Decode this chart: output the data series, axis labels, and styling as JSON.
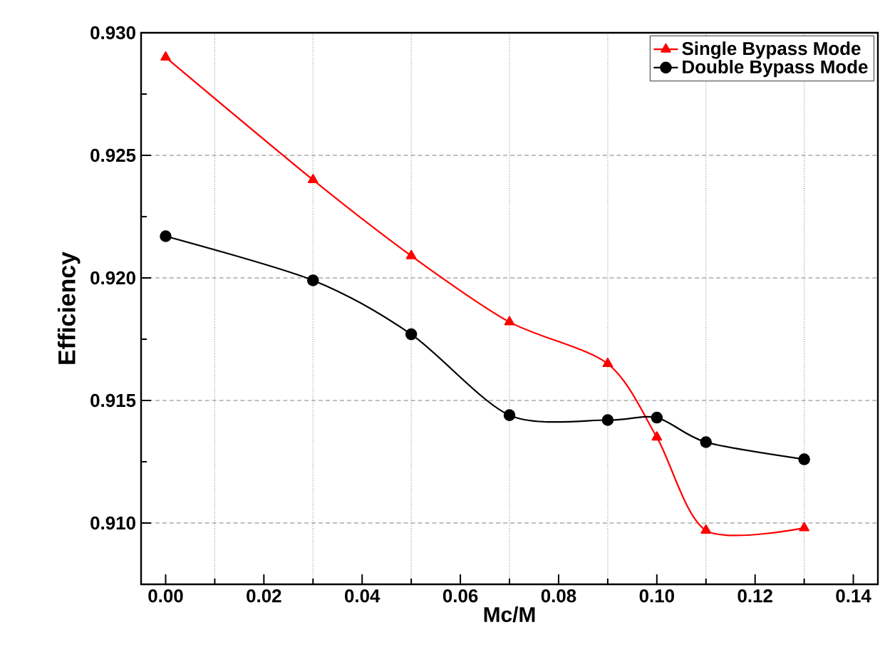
{
  "chart_data": {
    "type": "line",
    "xlabel": "Mc/M",
    "ylabel": "Efficiency",
    "x": [
      0.0,
      0.03,
      0.05,
      0.07,
      0.09,
      0.1,
      0.11,
      0.13
    ],
    "series": [
      {
        "name": "Single Bypass Mode",
        "color": "#ff0000",
        "marker": "triangle",
        "values": [
          0.929,
          0.924,
          0.9209,
          0.9182,
          0.9165,
          0.9135,
          0.9097,
          0.9098
        ]
      },
      {
        "name": "Double Bypass Mode",
        "color": "#000000",
        "marker": "circle",
        "values": [
          0.9217,
          0.9199,
          0.9177,
          0.9144,
          0.9142,
          0.9143,
          0.9133,
          0.9126
        ]
      }
    ],
    "xlim": [
      -0.005,
      0.145
    ],
    "ylim": [
      0.9075,
      0.93
    ],
    "xticks": [
      {
        "value": 0.0,
        "label": "0.00"
      },
      {
        "value": 0.02,
        "label": "0.02"
      },
      {
        "value": 0.04,
        "label": "0.04"
      },
      {
        "value": 0.06,
        "label": "0.06"
      },
      {
        "value": 0.08,
        "label": "0.08"
      },
      {
        "value": 0.1,
        "label": "0.10"
      },
      {
        "value": 0.12,
        "label": "0.12"
      },
      {
        "value": 0.14,
        "label": "0.14"
      }
    ],
    "yticks": [
      {
        "value": 0.91,
        "label": "0.910"
      },
      {
        "value": 0.915,
        "label": "0.915"
      },
      {
        "value": 0.92,
        "label": "0.920"
      },
      {
        "value": 0.925,
        "label": "0.925"
      },
      {
        "value": 0.93,
        "label": "0.930"
      }
    ],
    "grid": true,
    "legend": "top right",
    "line_style": "solid"
  }
}
